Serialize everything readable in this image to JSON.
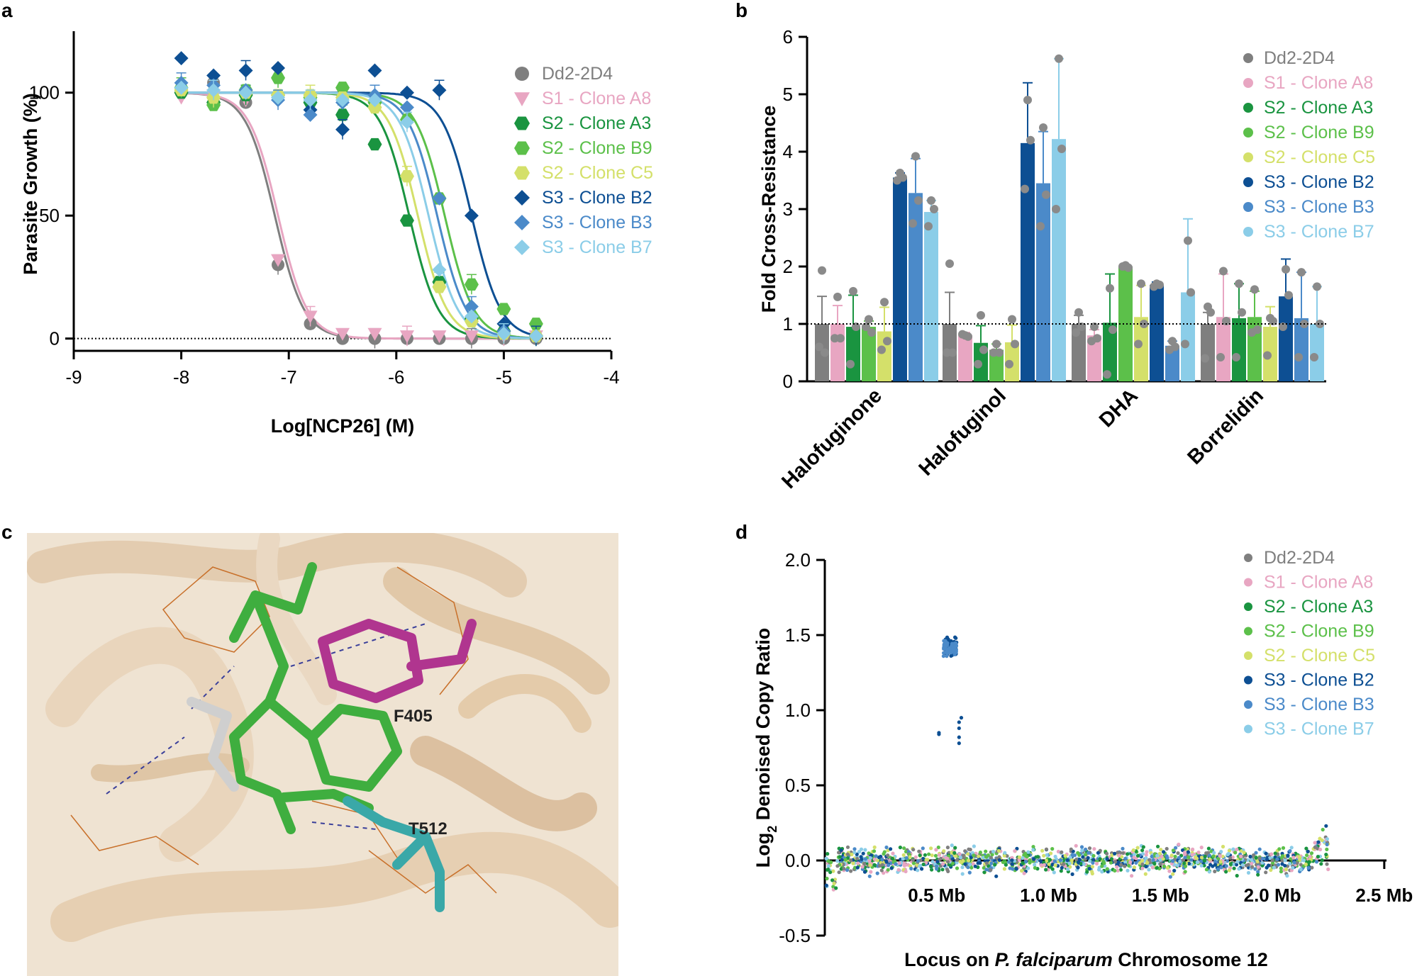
{
  "panels": {
    "a": {
      "letter": "a"
    },
    "b": {
      "letter": "b"
    },
    "c": {
      "letter": "c",
      "residues": [
        "F405",
        "T512"
      ]
    },
    "d": {
      "letter": "d"
    }
  },
  "colors": {
    "Dd2-2D4": "#7f7f7f",
    "S1 - Clone A8": "#e8a6c2",
    "S2 - Clone A3": "#1a9440",
    "S2 - Clone B9": "#5cc04a",
    "S2 - Clone C5": "#d4e06a",
    "S3 - Clone B2": "#0d4f93",
    "S3 - Clone B3": "#4b8ac9",
    "S3 - Clone B7": "#8bcde8"
  },
  "chart_data": [
    {
      "panel": "a",
      "type": "line",
      "xlabel": "Log[NCP26] (M)",
      "ylabel": "Parasite Growth (%)",
      "xlim": [
        -9,
        -4
      ],
      "ylim": [
        -5,
        125
      ],
      "xticks": [
        "-9",
        "-8",
        "-7",
        "-6",
        "-5",
        "-4"
      ],
      "yticks": [
        "0",
        "50",
        "100"
      ],
      "reference_line": 0,
      "legend_position": "top-right",
      "x": [
        -8.0,
        -7.7,
        -7.4,
        -7.1,
        -6.8,
        -6.5,
        -6.2,
        -5.9,
        -5.6,
        -5.3,
        -5.0,
        -4.7
      ],
      "series": [
        {
          "name": "Dd2-2D4",
          "marker": "circle",
          "ic50_log": -7.13,
          "values": [
            100,
            104,
            96,
            30,
            6,
            0,
            0,
            0,
            0,
            0,
            0,
            0
          ]
        },
        {
          "name": "S1 - Clone A8",
          "marker": "triangle-down",
          "ic50_log": -7.1,
          "values": [
            98,
            99,
            97,
            32,
            9,
            2,
            2,
            1,
            1,
            1,
            1,
            1
          ]
        },
        {
          "name": "S2 - Clone A3",
          "marker": "hexagon",
          "ic50_log": -5.88,
          "values": [
            100,
            96,
            99,
            99,
            96,
            91,
            79,
            48,
            23,
            8,
            3,
            1
          ]
        },
        {
          "name": "S2 - Clone B9",
          "marker": "hexagon",
          "ic50_log": -5.55,
          "values": [
            102,
            95,
            101,
            106,
            98,
            102,
            96,
            89,
            57,
            22,
            12,
            6
          ]
        },
        {
          "name": "S2 - Clone C5",
          "marker": "hexagon",
          "ic50_log": -5.8,
          "values": [
            101,
            98,
            100,
            99,
            99,
            98,
            94,
            66,
            21,
            7,
            2,
            1
          ]
        },
        {
          "name": "S3 - Clone B2",
          "marker": "diamond",
          "ic50_log": -5.3,
          "values": [
            114,
            107,
            109,
            110,
            93,
            85,
            109,
            100,
            101,
            50,
            6,
            1
          ]
        },
        {
          "name": "S3 - Clone B3",
          "marker": "diamond",
          "ic50_log": -5.62,
          "values": [
            104,
            103,
            101,
            97,
            91,
            96,
            99,
            94,
            57,
            13,
            3,
            1
          ]
        },
        {
          "name": "S3 - Clone B7",
          "marker": "diamond",
          "ic50_log": -5.7,
          "values": [
            102,
            101,
            100,
            98,
            97,
            97,
            97,
            88,
            28,
            9,
            2,
            1
          ]
        }
      ]
    },
    {
      "panel": "b",
      "type": "bar",
      "ylabel": "Fold Cross-Resistance",
      "ylim": [
        0,
        6
      ],
      "yticks": [
        "0",
        "1",
        "2",
        "3",
        "4",
        "5",
        "6"
      ],
      "reference_line": 1,
      "legend_position": "top-right",
      "categories": [
        "Halofuginone",
        "Halofuginol",
        "DHA",
        "Borrelidin"
      ],
      "series": [
        {
          "name": "Dd2-2D4",
          "values": [
            1.0,
            1.0,
            1.0,
            1.0
          ],
          "errors": [
            0.48,
            0.55,
            0.15,
            0.2
          ],
          "points": [
            [
              1.93,
              0.6,
              0.5
            ],
            [
              2.05,
              0.5,
              0.5
            ],
            [
              1.2,
              0.85,
              0.95
            ],
            [
              1.3,
              0.4,
              1.2
            ]
          ]
        },
        {
          "name": "S1 - Clone A8",
          "values": [
            1.0,
            0.8,
            0.8,
            1.12
          ],
          "errors": [
            0.32,
            0.05,
            0.1,
            0.75
          ],
          "points": [
            [
              1.47,
              0.75,
              0.75
            ],
            [
              0.8,
              0.82,
              0.78
            ],
            [
              0.95,
              0.7,
              0.75
            ],
            [
              1.92,
              0.42,
              1.05
            ]
          ]
        },
        {
          "name": "S2 - Clone A3",
          "values": [
            0.95,
            0.67,
            1.02,
            1.1
          ],
          "errors": [
            0.55,
            0.3,
            0.85,
            0.6
          ],
          "points": [
            [
              1.57,
              0.3,
              0.95
            ],
            [
              1.15,
              0.3,
              0.55
            ],
            [
              1.62,
              0.12,
              0.9
            ],
            [
              1.7,
              0.42,
              1.2
            ]
          ]
        },
        {
          "name": "S2 - Clone B9",
          "values": [
            0.95,
            0.55,
            2.0,
            1.12
          ],
          "errors": [
            0.1,
            0.1,
            0.02,
            0.45
          ],
          "points": [
            [
              1.08,
              0.95,
              0.85
            ],
            [
              0.65,
              0.5,
              0.5
            ],
            [
              2.02,
              2.0,
              1.98
            ],
            [
              1.6,
              0.85,
              0.9
            ]
          ]
        },
        {
          "name": "S2 - Clone C5",
          "values": [
            0.87,
            0.68,
            1.12,
            0.95
          ],
          "errors": [
            0.42,
            0.3,
            0.55,
            0.35
          ],
          "points": [
            [
              1.38,
              0.55,
              0.7
            ],
            [
              1.08,
              0.3,
              0.65
            ],
            [
              1.7,
              0.65,
              1.0
            ],
            [
              1.1,
              0.45,
              1.05
            ]
          ]
        },
        {
          "name": "S3 - Clone B2",
          "values": [
            3.55,
            4.15,
            1.68,
            1.48
          ],
          "errors": [
            0.08,
            1.05,
            0.05,
            0.65
          ],
          "points": [
            [
              3.63,
              3.5,
              3.55
            ],
            [
              4.9,
              3.35,
              4.2
            ],
            [
              1.7,
              1.65,
              1.68
            ],
            [
              1.95,
              0.95,
              1.5
            ]
          ]
        },
        {
          "name": "S3 - Clone B3",
          "values": [
            3.28,
            3.45,
            0.62,
            1.1
          ],
          "errors": [
            0.6,
            0.9,
            0.08,
            0.8
          ],
          "points": [
            [
              3.92,
              2.75,
              3.15
            ],
            [
              4.42,
              2.7,
              3.25
            ],
            [
              0.7,
              0.55,
              0.6
            ],
            [
              1.9,
              0.42,
              1.0
            ]
          ]
        },
        {
          "name": "S3 - Clone B7",
          "values": [
            2.95,
            4.22,
            1.55,
            1.0
          ],
          "errors": [
            0.2,
            1.4,
            1.28,
            0.65
          ],
          "points": [
            [
              3.15,
              2.7,
              3.0
            ],
            [
              5.62,
              3.0,
              4.05
            ],
            [
              2.45,
              0.65,
              1.55
            ],
            [
              1.65,
              0.42,
              1.0
            ]
          ]
        }
      ]
    },
    {
      "panel": "d",
      "type": "scatter",
      "xlabel_parts": [
        "Locus on ",
        "P. falciparum",
        " Chromosome 12"
      ],
      "ylabel_parts": [
        "Log",
        "2",
        " Denoised Copy Ratio"
      ],
      "xlim": [
        0,
        2.5
      ],
      "ylim": [
        -0.5,
        2.0
      ],
      "xticks": [
        "0.5 Mb",
        "1.0 Mb",
        "1.5 Mb",
        "2.0 Mb",
        "2.5 Mb"
      ],
      "yticks": [
        "-0.5",
        "0.0",
        "0.5",
        "1.0",
        "1.5",
        "2.0"
      ],
      "legend_position": "top-right",
      "amplified_region_mb": [
        0.48,
        0.6
      ],
      "amplified_value": 1.42,
      "amplified_series": [
        "S3 - Clone B2",
        "S3 - Clone B3"
      ],
      "series": [
        {
          "name": "Dd2-2D4"
        },
        {
          "name": "S1 - Clone A8"
        },
        {
          "name": "S2 - Clone A3"
        },
        {
          "name": "S2 - Clone B9"
        },
        {
          "name": "S2 - Clone C5"
        },
        {
          "name": "S3 - Clone B2"
        },
        {
          "name": "S3 - Clone B3"
        },
        {
          "name": "S3 - Clone B7"
        }
      ]
    }
  ]
}
